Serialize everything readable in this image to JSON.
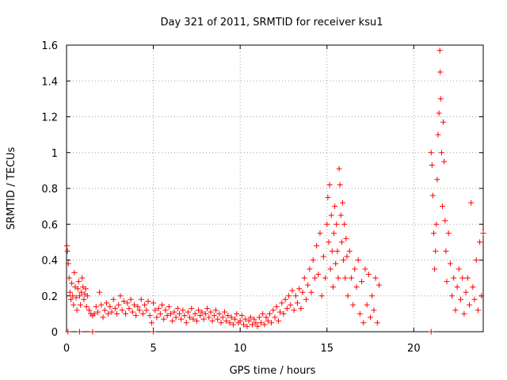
{
  "chart_data": {
    "type": "scatter",
    "title": "Day 321 of 2011, SRMTID for receiver ksu1",
    "xlabel": "GPS time / hours",
    "ylabel": "SRMTID / TECUs",
    "xlim": [
      0,
      24
    ],
    "ylim": [
      0,
      1.6
    ],
    "xticks": [
      0,
      5,
      10,
      15,
      20
    ],
    "xtick_labels": [
      "0",
      "5",
      "10",
      "15",
      "20"
    ],
    "yticks": [
      0,
      0.2,
      0.4,
      0.6,
      0.8,
      1.0,
      1.2,
      1.4,
      1.6
    ],
    "ytick_labels": [
      "0",
      "0.2",
      "0.4",
      "0.6",
      "0.8",
      "1",
      "1.2",
      "1.4",
      "1.6"
    ],
    "grid": true,
    "marker": "+",
    "series": [
      {
        "name": "ksu1",
        "color": "#ff0000",
        "points": [
          [
            0.02,
            0.48
          ],
          [
            0.05,
            0.45
          ],
          [
            0.1,
            0.38
          ],
          [
            0.15,
            0.3
          ],
          [
            0.2,
            0.22
          ],
          [
            0.25,
            0.18
          ],
          [
            0.3,
            0.27
          ],
          [
            0.35,
            0.2
          ],
          [
            0.4,
            0.15
          ],
          [
            0.45,
            0.33
          ],
          [
            0.5,
            0.25
          ],
          [
            0.55,
            0.19
          ],
          [
            0.6,
            0.12
          ],
          [
            0.65,
            0.24
          ],
          [
            0.7,
            0.28
          ],
          [
            0.75,
            0.2
          ],
          [
            0.8,
            0.15
          ],
          [
            0.85,
            0.22
          ],
          [
            0.9,
            0.3
          ],
          [
            0.95,
            0.25
          ],
          [
            1.0,
            0.18
          ],
          [
            1.05,
            0.21
          ],
          [
            1.1,
            0.24
          ],
          [
            1.15,
            0.14
          ],
          [
            1.2,
            0.2
          ],
          [
            1.3,
            0.12
          ],
          [
            1.4,
            0.1
          ],
          [
            1.5,
            0.09
          ],
          [
            1.6,
            0.1
          ],
          [
            1.7,
            0.14
          ],
          [
            1.8,
            0.11
          ],
          [
            1.9,
            0.22
          ],
          [
            2.0,
            0.15
          ],
          [
            2.1,
            0.08
          ],
          [
            2.2,
            0.12
          ],
          [
            2.3,
            0.16
          ],
          [
            2.4,
            0.1
          ],
          [
            2.5,
            0.14
          ],
          [
            2.6,
            0.11
          ],
          [
            2.7,
            0.18
          ],
          [
            2.8,
            0.13
          ],
          [
            2.9,
            0.1
          ],
          [
            3.0,
            0.15
          ],
          [
            3.1,
            0.2
          ],
          [
            3.2,
            0.12
          ],
          [
            3.3,
            0.17
          ],
          [
            3.4,
            0.1
          ],
          [
            3.5,
            0.16
          ],
          [
            3.6,
            0.13
          ],
          [
            3.7,
            0.18
          ],
          [
            3.8,
            0.11
          ],
          [
            3.9,
            0.15
          ],
          [
            4.0,
            0.09
          ],
          [
            4.1,
            0.14
          ],
          [
            4.2,
            0.12
          ],
          [
            4.3,
            0.18
          ],
          [
            4.4,
            0.1
          ],
          [
            4.5,
            0.15
          ],
          [
            4.6,
            0.12
          ],
          [
            4.7,
            0.17
          ],
          [
            4.8,
            0.09
          ],
          [
            4.9,
            0.05
          ],
          [
            5.0,
            0.16
          ],
          [
            5.1,
            0.12
          ],
          [
            5.2,
            0.08
          ],
          [
            5.3,
            0.13
          ],
          [
            5.4,
            0.1
          ],
          [
            5.5,
            0.15
          ],
          [
            5.6,
            0.07
          ],
          [
            5.7,
            0.12
          ],
          [
            5.8,
            0.09
          ],
          [
            5.9,
            0.14
          ],
          [
            6.0,
            0.1
          ],
          [
            6.1,
            0.06
          ],
          [
            6.2,
            0.11
          ],
          [
            6.3,
            0.08
          ],
          [
            6.4,
            0.13
          ],
          [
            6.5,
            0.1
          ],
          [
            6.6,
            0.07
          ],
          [
            6.7,
            0.12
          ],
          [
            6.8,
            0.09
          ],
          [
            6.9,
            0.05
          ],
          [
            7.0,
            0.11
          ],
          [
            7.1,
            0.08
          ],
          [
            7.2,
            0.13
          ],
          [
            7.3,
            0.07
          ],
          [
            7.4,
            0.1
          ],
          [
            7.5,
            0.06
          ],
          [
            7.6,
            0.12
          ],
          [
            7.7,
            0.09
          ],
          [
            7.8,
            0.11
          ],
          [
            7.9,
            0.07
          ],
          [
            8.0,
            0.1
          ],
          [
            8.1,
            0.13
          ],
          [
            8.2,
            0.08
          ],
          [
            8.3,
            0.11
          ],
          [
            8.4,
            0.06
          ],
          [
            8.5,
            0.09
          ],
          [
            8.6,
            0.12
          ],
          [
            8.7,
            0.07
          ],
          [
            8.8,
            0.1
          ],
          [
            8.9,
            0.05
          ],
          [
            9.0,
            0.08
          ],
          [
            9.1,
            0.11
          ],
          [
            9.2,
            0.06
          ],
          [
            9.3,
            0.09
          ],
          [
            9.4,
            0.05
          ],
          [
            9.5,
            0.08
          ],
          [
            9.6,
            0.04
          ],
          [
            9.7,
            0.07
          ],
          [
            9.8,
            0.1
          ],
          [
            9.9,
            0.05
          ],
          [
            10.0,
            0.06
          ],
          [
            10.1,
            0.09
          ],
          [
            10.2,
            0.04
          ],
          [
            10.3,
            0.07
          ],
          [
            10.4,
            0.03
          ],
          [
            10.5,
            0.06
          ],
          [
            10.6,
            0.08
          ],
          [
            10.7,
            0.04
          ],
          [
            10.8,
            0.07
          ],
          [
            10.9,
            0.05
          ],
          [
            11.0,
            0.03
          ],
          [
            11.1,
            0.08
          ],
          [
            11.2,
            0.05
          ],
          [
            11.3,
            0.1
          ],
          [
            11.4,
            0.04
          ],
          [
            11.5,
            0.08
          ],
          [
            11.6,
            0.06
          ],
          [
            11.7,
            0.1
          ],
          [
            11.8,
            0.05
          ],
          [
            11.9,
            0.12
          ],
          [
            12.0,
            0.08
          ],
          [
            12.1,
            0.14
          ],
          [
            12.2,
            0.06
          ],
          [
            12.3,
            0.11
          ],
          [
            12.4,
            0.16
          ],
          [
            12.5,
            0.1
          ],
          [
            12.6,
            0.18
          ],
          [
            12.7,
            0.13
          ],
          [
            12.8,
            0.2
          ],
          [
            12.9,
            0.15
          ],
          [
            13.0,
            0.23
          ],
          [
            13.1,
            0.12
          ],
          [
            13.2,
            0.2
          ],
          [
            13.3,
            0.16
          ],
          [
            13.4,
            0.24
          ],
          [
            13.5,
            0.13
          ],
          [
            13.6,
            0.22
          ],
          [
            13.7,
            0.3
          ],
          [
            13.8,
            0.18
          ],
          [
            13.9,
            0.26
          ],
          [
            14.0,
            0.35
          ],
          [
            14.1,
            0.22
          ],
          [
            14.2,
            0.4
          ],
          [
            14.3,
            0.3
          ],
          [
            14.4,
            0.48
          ],
          [
            14.5,
            0.32
          ],
          [
            14.6,
            0.55
          ],
          [
            14.7,
            0.2
          ],
          [
            14.8,
            0.42
          ],
          [
            14.9,
            0.3
          ],
          [
            15.0,
            0.6
          ],
          [
            15.05,
            0.75
          ],
          [
            15.1,
            0.5
          ],
          [
            15.15,
            0.82
          ],
          [
            15.2,
            0.35
          ],
          [
            15.25,
            0.65
          ],
          [
            15.3,
            0.45
          ],
          [
            15.35,
            0.25
          ],
          [
            15.4,
            0.55
          ],
          [
            15.45,
            0.7
          ],
          [
            15.5,
            0.38
          ],
          [
            15.55,
            0.6
          ],
          [
            15.6,
            0.45
          ],
          [
            15.65,
            0.3
          ],
          [
            15.7,
            0.91
          ],
          [
            15.75,
            0.82
          ],
          [
            15.8,
            0.65
          ],
          [
            15.85,
            0.5
          ],
          [
            15.9,
            0.72
          ],
          [
            15.95,
            0.4
          ],
          [
            16.0,
            0.6
          ],
          [
            16.05,
            0.3
          ],
          [
            16.1,
            0.52
          ],
          [
            16.15,
            0.42
          ],
          [
            16.2,
            0.2
          ],
          [
            16.3,
            0.45
          ],
          [
            16.4,
            0.3
          ],
          [
            16.5,
            0.15
          ],
          [
            16.6,
            0.35
          ],
          [
            16.7,
            0.25
          ],
          [
            16.8,
            0.4
          ],
          [
            16.9,
            0.1
          ],
          [
            17.0,
            0.28
          ],
          [
            17.1,
            0.05
          ],
          [
            17.2,
            0.35
          ],
          [
            17.3,
            0.15
          ],
          [
            17.4,
            0.32
          ],
          [
            17.5,
            0.08
          ],
          [
            17.6,
            0.2
          ],
          [
            17.7,
            0.12
          ],
          [
            17.8,
            0.3
          ],
          [
            17.9,
            0.05
          ],
          [
            18.0,
            0.26
          ],
          [
            21.0,
            1.0
          ],
          [
            21.05,
            0.93
          ],
          [
            21.1,
            0.76
          ],
          [
            21.15,
            0.55
          ],
          [
            21.2,
            0.35
          ],
          [
            21.25,
            0.45
          ],
          [
            21.3,
            0.6
          ],
          [
            21.35,
            0.85
          ],
          [
            21.4,
            1.1
          ],
          [
            21.45,
            1.22
          ],
          [
            21.5,
            1.57
          ],
          [
            21.52,
            1.45
          ],
          [
            21.55,
            1.3
          ],
          [
            21.6,
            1.0
          ],
          [
            21.65,
            0.7
          ],
          [
            21.7,
            1.17
          ],
          [
            21.75,
            0.95
          ],
          [
            21.8,
            0.62
          ],
          [
            21.85,
            0.45
          ],
          [
            21.9,
            0.28
          ],
          [
            22.0,
            0.55
          ],
          [
            22.1,
            0.38
          ],
          [
            22.2,
            0.2
          ],
          [
            22.3,
            0.3
          ],
          [
            22.4,
            0.12
          ],
          [
            22.5,
            0.25
          ],
          [
            22.6,
            0.35
          ],
          [
            22.7,
            0.18
          ],
          [
            22.8,
            0.3
          ],
          [
            22.9,
            0.1
          ],
          [
            23.0,
            0.22
          ],
          [
            23.1,
            0.3
          ],
          [
            23.2,
            0.15
          ],
          [
            23.3,
            0.72
          ],
          [
            23.4,
            0.25
          ],
          [
            23.5,
            0.18
          ],
          [
            23.6,
            0.4
          ],
          [
            23.7,
            0.12
          ],
          [
            23.8,
            0.5
          ],
          [
            23.9,
            0.2
          ],
          [
            24.0,
            0.55
          ],
          [
            0.08,
            0.0
          ],
          [
            0.75,
            0.0
          ],
          [
            1.5,
            0.0
          ],
          [
            5.0,
            0.0
          ],
          [
            21.0,
            0.0
          ]
        ]
      }
    ]
  }
}
